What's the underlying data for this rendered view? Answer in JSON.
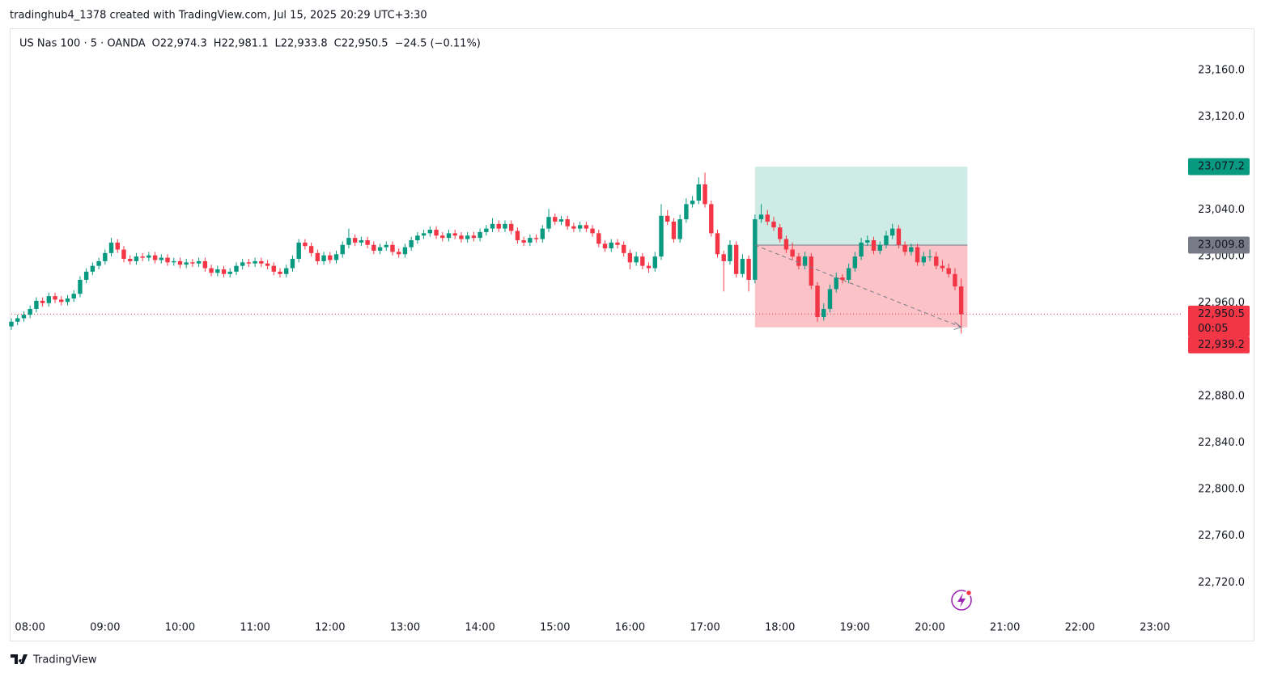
{
  "header": {
    "attribution": "tradinghub4_1378 created with TradingView.com, Jul 15, 2025 20:29 UTC+3:30"
  },
  "footer": {
    "brand": "TradingView"
  },
  "chart_data": {
    "type": "candlestick",
    "symbol": "US Nas 100 · 5 · OANDA",
    "legend_keys": [
      "O",
      "H",
      "L",
      "C"
    ],
    "legend_values": [
      {
        "value": 22974.3,
        "label": "22,974.3"
      },
      {
        "value": 22981.1,
        "label": "22,981.1"
      },
      {
        "value": 22933.8,
        "label": "22,933.8"
      },
      {
        "value": 22950.5,
        "label": "22,950.5"
      }
    ],
    "change_label": "−24.5 (−0.11%)",
    "up_color": "#089981",
    "down_color": "#f23645",
    "ylim": [
      22691,
      23196
    ],
    "yticks": [
      {
        "value": 23160,
        "label": "23,160.0"
      },
      {
        "value": 23120,
        "label": "23,120.0"
      },
      {
        "value": 23040,
        "label": "23,040.0"
      },
      {
        "value": 23000,
        "label": "23,000.0"
      },
      {
        "value": 22960,
        "label": "22,960.0"
      },
      {
        "value": 22880,
        "label": "22,880.0"
      },
      {
        "value": 22840,
        "label": "22,840.0"
      },
      {
        "value": 22800,
        "label": "22,800.0"
      },
      {
        "value": 22760,
        "label": "22,760.0"
      },
      {
        "value": 22720,
        "label": "22,720.0"
      }
    ],
    "xlim": [
      0,
      186.5
    ],
    "xticks": [
      {
        "value": 3,
        "label": "08:00"
      },
      {
        "value": 15,
        "label": "09:00"
      },
      {
        "value": 27,
        "label": "10:00"
      },
      {
        "value": 39,
        "label": "11:00"
      },
      {
        "value": 51,
        "label": "12:00"
      },
      {
        "value": 63,
        "label": "13:00"
      },
      {
        "value": 75,
        "label": "14:00"
      },
      {
        "value": 87,
        "label": "15:00"
      },
      {
        "value": 99,
        "label": "16:00"
      },
      {
        "value": 111,
        "label": "17:00"
      },
      {
        "value": 123,
        "label": "18:00"
      },
      {
        "value": 135,
        "label": "19:00"
      },
      {
        "value": 147,
        "label": "20:00"
      },
      {
        "value": 159,
        "label": "21:00"
      },
      {
        "value": 171,
        "label": "22:00"
      },
      {
        "value": 183,
        "label": "23:00"
      }
    ],
    "position": {
      "start": 119,
      "end": 153,
      "entry": 23009.8,
      "target": 23077.2,
      "stop": 22939.2
    },
    "price_labels": [
      {
        "value": 23077.2,
        "label": "23,077.2",
        "color": "#089981"
      },
      {
        "value": 23009.8,
        "label": "23,009.8",
        "color": "#787b86"
      },
      {
        "value": 22950.5,
        "label": "22,950.5",
        "color": "#f23645"
      },
      {
        "value": 22939.2,
        "label": "22,939.2",
        "color": "#f23645"
      }
    ],
    "countdown": "00:05",
    "candles": [
      [
        22940,
        22947,
        22937,
        22944
      ],
      [
        22944,
        22950,
        22941,
        22947
      ],
      [
        22947,
        22953,
        22944,
        22950
      ],
      [
        22950,
        22958,
        22947,
        22955
      ],
      [
        22955,
        22965,
        22952,
        22962
      ],
      [
        22962,
        22965,
        22957,
        22960
      ],
      [
        22960,
        22969,
        22957,
        22966
      ],
      [
        22966,
        22969,
        22960,
        22963
      ],
      [
        22963,
        22966,
        22958,
        22961
      ],
      [
        22961,
        22967,
        22958,
        22964
      ],
      [
        22964,
        22971,
        22961,
        22968
      ],
      [
        22968,
        22983,
        22965,
        22980
      ],
      [
        22980,
        22990,
        22977,
        22987
      ],
      [
        22987,
        22995,
        22984,
        22992
      ],
      [
        22992,
        22999,
        22989,
        22996
      ],
      [
        22996,
        23006,
        22993,
        23003
      ],
      [
        23003,
        23016,
        23000,
        23012
      ],
      [
        23012,
        23015,
        23003,
        23006
      ],
      [
        23006,
        23009,
        22995,
        22998
      ],
      [
        22998,
        23001,
        22993,
        22996
      ],
      [
        22996,
        23003,
        22993,
        23000
      ],
      [
        23000,
        23003,
        22996,
        22999
      ],
      [
        22999,
        23004,
        22996,
        23001
      ],
      [
        23001,
        23004,
        22994,
        22997
      ],
      [
        22997,
        23002,
        22994,
        22999
      ],
      [
        22999,
        23002,
        22992,
        22995
      ],
      [
        22995,
        22999,
        22992,
        22996
      ],
      [
        22996,
        22999,
        22990,
        22993
      ],
      [
        22993,
        22998,
        22990,
        22995
      ],
      [
        22995,
        22998,
        22991,
        22994
      ],
      [
        22994,
        22999,
        22991,
        22996
      ],
      [
        22996,
        22999,
        22987,
        22990
      ],
      [
        22990,
        22993,
        22983,
        22986
      ],
      [
        22986,
        22992,
        22983,
        22989
      ],
      [
        22989,
        22992,
        22982,
        22985
      ],
      [
        22985,
        22990,
        22982,
        22987
      ],
      [
        22987,
        22995,
        22984,
        22992
      ],
      [
        22992,
        22998,
        22989,
        22995
      ],
      [
        22995,
        22998,
        22991,
        22994
      ],
      [
        22994,
        22999,
        22991,
        22996
      ],
      [
        22996,
        22999,
        22991,
        22994
      ],
      [
        22994,
        22997,
        22989,
        22992
      ],
      [
        22992,
        22995,
        22984,
        22987
      ],
      [
        22987,
        22990,
        22982,
        22985
      ],
      [
        22985,
        22993,
        22982,
        22990
      ],
      [
        22990,
        23001,
        22987,
        22998
      ],
      [
        22998,
        23015,
        22995,
        23012
      ],
      [
        23012,
        23015,
        23006,
        23009
      ],
      [
        23009,
        23012,
        23000,
        23003
      ],
      [
        23003,
        23006,
        22993,
        22996
      ],
      [
        22996,
        23004,
        22993,
        23001
      ],
      [
        23001,
        23004,
        22994,
        22997
      ],
      [
        22997,
        23005,
        22994,
        23002
      ],
      [
        23002,
        23013,
        22999,
        23010
      ],
      [
        23010,
        23024,
        23007,
        23016
      ],
      [
        23016,
        23019,
        23009,
        23012
      ],
      [
        23012,
        23017,
        23009,
        23014
      ],
      [
        23014,
        23017,
        23007,
        23010
      ],
      [
        23010,
        23013,
        23002,
        23005
      ],
      [
        23005,
        23011,
        23002,
        23008
      ],
      [
        23008,
        23013,
        23005,
        23010
      ],
      [
        23010,
        23013,
        23001,
        23004
      ],
      [
        23004,
        23007,
        22999,
        23002
      ],
      [
        23002,
        23011,
        22999,
        23008
      ],
      [
        23008,
        23017,
        23005,
        23014
      ],
      [
        23014,
        23021,
        23011,
        23018
      ],
      [
        23018,
        23023,
        23015,
        23020
      ],
      [
        23020,
        23026,
        23017,
        23023
      ],
      [
        23023,
        23026,
        23015,
        23018
      ],
      [
        23018,
        23021,
        23013,
        23016
      ],
      [
        23016,
        23023,
        23013,
        23020
      ],
      [
        23020,
        23023,
        23015,
        23018
      ],
      [
        23018,
        23021,
        23012,
        23015
      ],
      [
        23015,
        23021,
        23012,
        23018
      ],
      [
        23018,
        23021,
        23013,
        23016
      ],
      [
        23016,
        23024,
        23013,
        23021
      ],
      [
        23021,
        23027,
        23018,
        23024
      ],
      [
        23024,
        23033,
        23021,
        23028
      ],
      [
        23028,
        23031,
        23021,
        23024
      ],
      [
        23024,
        23031,
        23021,
        23028
      ],
      [
        23028,
        23031,
        23019,
        23022
      ],
      [
        23022,
        23025,
        23011,
        23014
      ],
      [
        23014,
        23017,
        23009,
        23012
      ],
      [
        23012,
        23019,
        23009,
        23016
      ],
      [
        23016,
        23019,
        23012,
        23015
      ],
      [
        23015,
        23027,
        23012,
        23024
      ],
      [
        23024,
        23041,
        23021,
        23034
      ],
      [
        23034,
        23037,
        23027,
        23030
      ],
      [
        23030,
        23035,
        23027,
        23032
      ],
      [
        23032,
        23035,
        23023,
        23026
      ],
      [
        23026,
        23029,
        23021,
        23024
      ],
      [
        23024,
        23030,
        23021,
        23027
      ],
      [
        23027,
        23030,
        23021,
        23024
      ],
      [
        23024,
        23027,
        23017,
        23020
      ],
      [
        23020,
        23023,
        23008,
        23011
      ],
      [
        23011,
        23014,
        23004,
        23007
      ],
      [
        23007,
        23015,
        23004,
        23012
      ],
      [
        23012,
        23015,
        23007,
        23010
      ],
      [
        23010,
        23013,
        23000,
        23003
      ],
      [
        23003,
        23006,
        22989,
        22995
      ],
      [
        22995,
        23004,
        22992,
        23000
      ],
      [
        23000,
        23003,
        22989,
        22992
      ],
      [
        22992,
        22995,
        22986,
        22990
      ],
      [
        22990,
        23004,
        22987,
        23000
      ],
      [
        23000,
        23045,
        22997,
        23035
      ],
      [
        23035,
        23040,
        23027,
        23030
      ],
      [
        23030,
        23033,
        23012,
        23015
      ],
      [
        23015,
        23036,
        23012,
        23032
      ],
      [
        23032,
        23050,
        23029,
        23045
      ],
      [
        23045,
        23052,
        23042,
        23048
      ],
      [
        23048,
        23068,
        23045,
        23062
      ],
      [
        23062,
        23072,
        23042,
        23045
      ],
      [
        23045,
        23048,
        23017,
        23020
      ],
      [
        23020,
        23023,
        22999,
        23002
      ],
      [
        23002,
        23005,
        22970,
        22996
      ],
      [
        22996,
        23014,
        22993,
        23010
      ],
      [
        23010,
        23013,
        22982,
        22985
      ],
      [
        22985,
        23002,
        22982,
        22998
      ],
      [
        22998,
        23001,
        22970,
        22980
      ],
      [
        22980,
        23036,
        22977,
        23032
      ],
      [
        23032,
        23045,
        23029,
        23036
      ],
      [
        23036,
        23040,
        23027,
        23030
      ],
      [
        23030,
        23034,
        23022,
        23025
      ],
      [
        23025,
        23028,
        23012,
        23015
      ],
      [
        23015,
        23018,
        23003,
        23006
      ],
      [
        23006,
        23012,
        22997,
        23000
      ],
      [
        23000,
        23003,
        22989,
        22992
      ],
      [
        22992,
        23004,
        22989,
        23000
      ],
      [
        23000,
        23003,
        22972,
        22975
      ],
      [
        22975,
        22978,
        22944,
        22948
      ],
      [
        22948,
        22960,
        22945,
        22955
      ],
      [
        22955,
        22976,
        22952,
        22972
      ],
      [
        22972,
        22986,
        22969,
        22982
      ],
      [
        22982,
        22985,
        22977,
        22980
      ],
      [
        22980,
        22994,
        22977,
        22990
      ],
      [
        22990,
        23004,
        22987,
        23000
      ],
      [
        23000,
        23016,
        22997,
        23012
      ],
      [
        23012,
        23018,
        23009,
        23014
      ],
      [
        23014,
        23017,
        23002,
        23005
      ],
      [
        23005,
        23013,
        23002,
        23010
      ],
      [
        23010,
        23022,
        23007,
        23018
      ],
      [
        23018,
        23028,
        23015,
        23024
      ],
      [
        23024,
        23027,
        23007,
        23010
      ],
      [
        23010,
        23013,
        23001,
        23004
      ],
      [
        23004,
        23011,
        23001,
        23008
      ],
      [
        23008,
        23011,
        22992,
        22995
      ],
      [
        22995,
        23004,
        22992,
        23000
      ],
      [
        23000,
        23006,
        22996,
        23000
      ],
      [
        23000,
        23004,
        22989,
        22992
      ],
      [
        22992,
        22997,
        22987,
        22990
      ],
      [
        22990,
        22994,
        22982,
        22985
      ],
      [
        22985,
        22990,
        22971,
        22974.3
      ],
      [
        22974.3,
        22981.1,
        22933.8,
        22950.5
      ]
    ]
  }
}
